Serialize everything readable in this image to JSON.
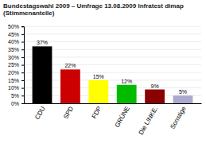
{
  "chart_data": {
    "type": "bar",
    "title": "Bundestagswahl 2009 – Umfrage 13.08.2009 Infratest dimap (Stimmenanteile)",
    "categories": [
      "CDU",
      "SPD",
      "FDP",
      "GRÜNE",
      "Die LINKE.",
      "Sonstige"
    ],
    "values": [
      37,
      22,
      15,
      12,
      9,
      5
    ],
    "value_labels": [
      "37%",
      "22%",
      "15%",
      "12%",
      "9%",
      "5%"
    ],
    "data_labels": true,
    "colors": [
      "#000000",
      "#cc0000",
      "#ffff00",
      "#00bb00",
      "#8b0000",
      "#aaaacc"
    ],
    "ylim": [
      0,
      50
    ],
    "yticks": [
      {
        "value": 0,
        "label": "0%"
      },
      {
        "value": 5,
        "label": "5%"
      },
      {
        "value": 10,
        "label": "10%"
      },
      {
        "value": 15,
        "label": "15%"
      },
      {
        "value": 20,
        "label": "20%"
      },
      {
        "value": 25,
        "label": "25%"
      },
      {
        "value": 30,
        "label": "30%"
      },
      {
        "value": 35,
        "label": "35%"
      },
      {
        "value": 40,
        "label": "40%"
      },
      {
        "value": 45,
        "label": "45%"
      },
      {
        "value": 50,
        "label": "50%"
      }
    ],
    "grid": true
  }
}
